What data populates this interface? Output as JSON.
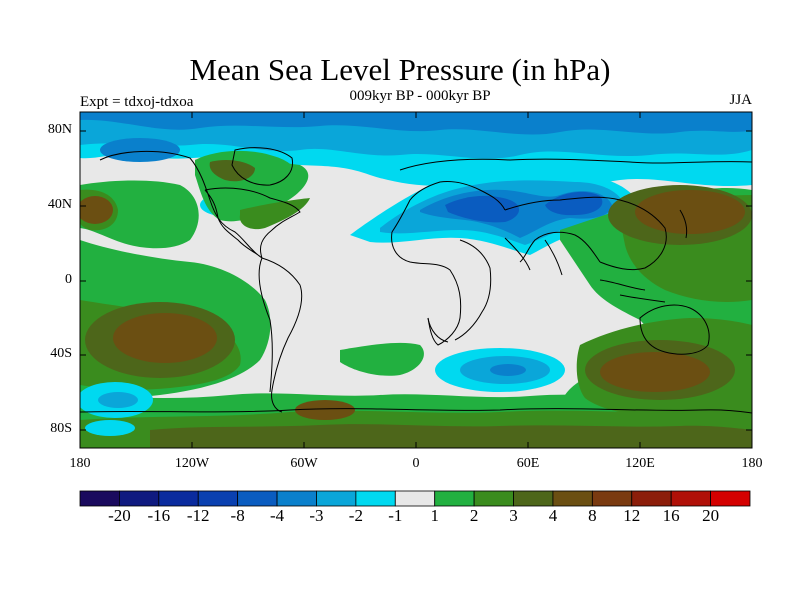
{
  "title": "Mean Sea Level Pressure (in hPa)",
  "subtitle": "009kyr BP - 000kyr BP",
  "left_label": "Expt = tdxoj-tdxoa",
  "right_label": "JJA",
  "lat_labels": [
    "80N",
    "40N",
    "0",
    "40S",
    "80S"
  ],
  "lon_labels": [
    "180",
    "120W",
    "60W",
    "0",
    "60E",
    "120E",
    "180"
  ],
  "colorbar": {
    "labels": [
      "-20",
      "-16",
      "-12",
      "-8",
      "-4",
      "-3",
      "-2",
      "-1",
      "1",
      "2",
      "3",
      "4",
      "8",
      "12",
      "16",
      "20"
    ],
    "colors": [
      "#1a0a5e",
      "#0f1a80",
      "#0a2b9e",
      "#0a40b0",
      "#0a5cc0",
      "#0a80cc",
      "#0aa6d9",
      "#00d9f0",
      "#e8e8e8",
      "#22b040",
      "#3a8c1e",
      "#4d661a",
      "#6b4f12",
      "#7a3a10",
      "#8c1e0a",
      "#b01008",
      "#d40000"
    ]
  },
  "legend_colors": {
    "neutral": "#e8e8e8",
    "cyan": "#00d9f0",
    "light_blue": "#0aa6d9",
    "blue": "#0a80cc",
    "dark_blue": "#0a5cc0",
    "green": "#22b040",
    "dark_green": "#3a8c1e",
    "olive": "#4d661a",
    "brown": "#6b4f12",
    "dark_brown": "#7a3a10"
  }
}
